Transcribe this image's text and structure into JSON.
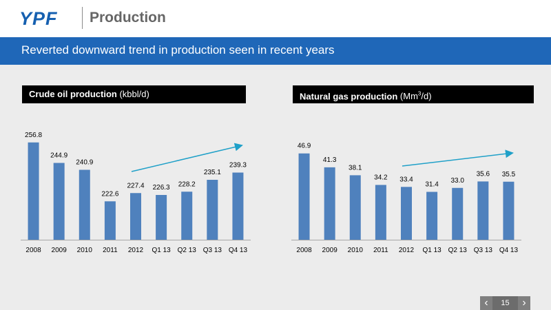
{
  "header": {
    "logo": "YPF",
    "title": "Production"
  },
  "banner": {
    "text": "Reverted downward trend in production seen in recent years"
  },
  "charts": {
    "left_title": "Crude oil production",
    "left_unit": "(kbbl/d)",
    "right_title": "Natural gas production",
    "right_unit_prefix": "(Mm",
    "right_unit_sup": "3",
    "right_unit_suffix": "/d)"
  },
  "pager": {
    "page": "15",
    "prev_icon": "chevron-left-icon",
    "next_icon": "chevron-right-icon"
  },
  "colors": {
    "bar": "#4f81bd",
    "banner": "#1f67b8",
    "arrow": "#1fa0c8"
  },
  "chart_data": [
    {
      "type": "bar",
      "title": "Crude oil production (kbbl/d)",
      "categories": [
        "2008",
        "2009",
        "2010",
        "2011",
        "2012",
        "Q1 13",
        "Q2 13",
        "Q3 13",
        "Q4 13"
      ],
      "values": [
        256.8,
        244.9,
        240.9,
        222.6,
        227.4,
        226.3,
        228.2,
        235.1,
        239.3
      ],
      "labels": [
        "256.8",
        "244.9",
        "240.9",
        "222.6",
        "227.4",
        "226.3",
        "228.2",
        "235.1",
        "239.3"
      ],
      "annotation": "upward trend arrow from 2012 to Q4 13"
    },
    {
      "type": "bar",
      "title": "Natural gas production (Mm3/d)",
      "categories": [
        "2008",
        "2009",
        "2010",
        "2011",
        "2012",
        "Q1 13",
        "Q2 13",
        "Q3 13",
        "Q4 13"
      ],
      "values": [
        46.9,
        41.3,
        38.1,
        34.2,
        33.4,
        31.4,
        33.0,
        35.6,
        35.5
      ],
      "labels": [
        "46.9",
        "41.3",
        "38.1",
        "34.2",
        "33.4",
        "31.4",
        "33.0",
        "35.6",
        "35.5"
      ],
      "annotation": "upward trend arrow from 2012 to Q4 13"
    }
  ]
}
